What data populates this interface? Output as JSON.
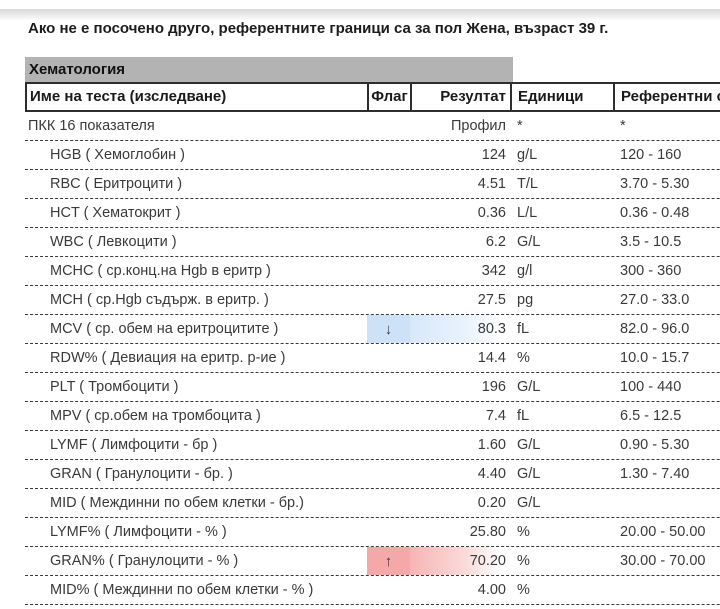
{
  "page": {
    "note": "Ако не е посочено друго, референтните граници са за пол Жена, възраст 39 г.",
    "section_title": "Хематология"
  },
  "table": {
    "headers": {
      "name": "Име на теста (изследване)",
      "flag": "Флаг",
      "result": "Резултат",
      "units": "Единици",
      "reference": "Референтни стойности"
    },
    "rows": [
      {
        "name": "ПКК 16 показателя",
        "flag": "",
        "result": "Профил",
        "units": "*",
        "reference": "*",
        "status": "normal"
      },
      {
        "name": "HGB ( Хемоглобин )",
        "flag": "",
        "result": "124",
        "units": "g/L",
        "reference": "120 - 160",
        "status": "normal"
      },
      {
        "name": "RBC ( Еритроцити )",
        "flag": "",
        "result": "4.51",
        "units": "T/L",
        "reference": "3.70 - 5.30",
        "status": "normal"
      },
      {
        "name": "HCT ( Хематокрит )",
        "flag": "",
        "result": "0.36",
        "units": "L/L",
        "reference": "0.36 - 0.48",
        "status": "normal"
      },
      {
        "name": "WBC ( Левкоцити )",
        "flag": "",
        "result": "6.2",
        "units": "G/L",
        "reference": "3.5 - 10.5",
        "status": "normal"
      },
      {
        "name": "MCHC ( ср.конц.на Hgb в еритр )",
        "flag": "",
        "result": "342",
        "units": "g/l",
        "reference": "300 - 360",
        "status": "normal"
      },
      {
        "name": "MCH ( ср.Hgb съдърж. в еритр. )",
        "flag": "",
        "result": "27.5",
        "units": "pg",
        "reference": "27.0 - 33.0",
        "status": "normal"
      },
      {
        "name": "MCV ( ср. обем на еритроцитите )",
        "flag": "↓",
        "result": "80.3",
        "units": "fL",
        "reference": "82.0 - 96.0",
        "status": "low"
      },
      {
        "name": "RDW% ( Девиация на еритр. р-ие )",
        "flag": "",
        "result": "14.4",
        "units": "%",
        "reference": "10.0 - 15.7",
        "status": "normal"
      },
      {
        "name": "PLT ( Тромбоцити )",
        "flag": "",
        "result": "196",
        "units": "G/L",
        "reference": "100 - 440",
        "status": "normal"
      },
      {
        "name": "MPV ( ср.обем на тромбоцита )",
        "flag": "",
        "result": "7.4",
        "units": "fL",
        "reference": "6.5 - 12.5",
        "status": "normal"
      },
      {
        "name": "LYMF ( Лимфоцити - бр )",
        "flag": "",
        "result": "1.60",
        "units": "G/L",
        "reference": "0.90 - 5.30",
        "status": "normal"
      },
      {
        "name": "GRAN ( Гранулоцити - бр. )",
        "flag": "",
        "result": "4.40",
        "units": "G/L",
        "reference": "1.30 - 7.40",
        "status": "normal"
      },
      {
        "name": "MID ( Междинни по обем клетки - бр.)",
        "flag": "",
        "result": "0.20",
        "units": "G/L",
        "reference": "",
        "status": "normal"
      },
      {
        "name": "LYMF% ( Лимфоцити - % )",
        "flag": "",
        "result": "25.80",
        "units": "%",
        "reference": "20.00 - 50.00",
        "status": "normal"
      },
      {
        "name": "GRAN% ( Гранулоцити - % )",
        "flag": "↑",
        "result": "70.20",
        "units": "%",
        "reference": "30.00 - 70.00",
        "status": "high"
      },
      {
        "name": "MID% ( Междинни по обем клетки - % )",
        "flag": "",
        "result": "4.00",
        "units": "%",
        "reference": "",
        "status": "normal"
      }
    ]
  },
  "colors": {
    "section_bar": "#b3b3b3",
    "low_flag_bg": "#cde2f7",
    "high_flag_bg": "#f5a8a8",
    "header_border": "#2e2e2e",
    "top_shadow": "#d8d8d8"
  }
}
